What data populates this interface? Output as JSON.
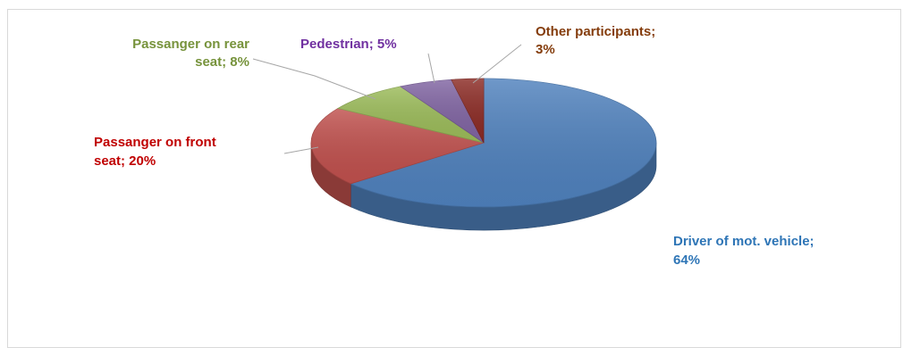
{
  "chart_data": {
    "type": "pie",
    "style": "3d",
    "slices": [
      {
        "label": "Driver of mot. vehicle",
        "value": 64,
        "label_lines": [
          "Driver of mot. vehicle;",
          "64%"
        ],
        "color": "#4F81BD",
        "label_color": "#2E75B6"
      },
      {
        "label": "Passanger on front seat",
        "value": 20,
        "label_lines": [
          "Passanger on front",
          "seat; 20%"
        ],
        "color": "#C0504D",
        "label_color": "#C00000"
      },
      {
        "label": "Passanger on rear seat",
        "value": 8,
        "label_lines": [
          "Passanger on rear",
          "seat; 8%"
        ],
        "color": "#9BBB59",
        "label_color": "#77933C"
      },
      {
        "label": "Pedestrian",
        "value": 5,
        "label_lines": [
          "Pedestrian; 5%"
        ],
        "color": "#8064A2",
        "label_color": "#7030A0"
      },
      {
        "label": "Other participants",
        "value": 3,
        "label_lines": [
          "Other participants;",
          "3%"
        ],
        "color": "#8B2A24",
        "label_color": "#843C0C"
      }
    ]
  }
}
